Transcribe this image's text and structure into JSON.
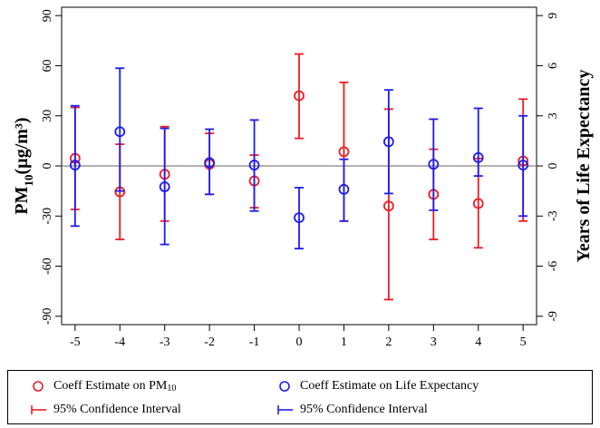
{
  "chart_data": {
    "type": "errorbar",
    "x": [
      -5,
      -4,
      -3,
      -2,
      -1,
      0,
      1,
      2,
      3,
      4,
      5
    ],
    "xlim": [
      -5.3,
      5.3
    ],
    "xticks": [
      "-5",
      "-4",
      "-3",
      "-2",
      "-1",
      "0",
      "1",
      "2",
      "3",
      "4",
      "5"
    ],
    "ylim_left": [
      -95,
      95
    ],
    "yticks_left": [
      "-90",
      "-60",
      "-30",
      "0",
      "30",
      "60",
      "90"
    ],
    "ylim_right": [
      -9.5,
      9.5
    ],
    "yticks_right": [
      "-9",
      "-6",
      "-3",
      "0",
      "3",
      "6",
      "9"
    ],
    "ylabel_left": "PM",
    "ylabel_left_sub": "10",
    "ylabel_left_units": "(µg/m³)",
    "ylabel_right": "Years of Life Expectancy",
    "reference_line": 0,
    "series": [
      {
        "name": "Coeff Estimate on PM",
        "name_sub": "10",
        "ci_name": "95% Confidence Interval",
        "axis": "left",
        "color": "#ee1c25",
        "estimate": [
          4.5,
          -15.5,
          -5,
          1,
          -9,
          42,
          8.5,
          -24,
          -17,
          -22.5,
          3
        ],
        "ci_low": [
          -26,
          -44,
          -33,
          -17,
          -25,
          16.5,
          -33,
          -80,
          -44,
          -49,
          -33
        ],
        "ci_high": [
          35,
          13,
          23.5,
          19.5,
          6.5,
          67,
          50,
          34,
          10,
          4.5,
          40
        ]
      },
      {
        "name": "Coeff Estimate on Life Expectancy",
        "ci_name": "95% Confidence Interval",
        "axis": "right",
        "color": "#1c1cee",
        "estimate": [
          0.05,
          2.05,
          -1.25,
          0.2,
          0.05,
          -3.1,
          -1.4,
          1.45,
          0.1,
          0.5,
          0.05
        ],
        "ci_low": [
          -3.6,
          -1.5,
          -4.7,
          -1.7,
          -2.7,
          -4.95,
          -3.3,
          -1.65,
          -2.65,
          -0.6,
          -3.0
        ],
        "ci_high": [
          3.6,
          5.85,
          2.25,
          2.2,
          2.75,
          -1.3,
          0.4,
          4.55,
          2.8,
          3.45,
          3.0
        ]
      }
    ],
    "grid": false,
    "legend_position": "bottom"
  }
}
